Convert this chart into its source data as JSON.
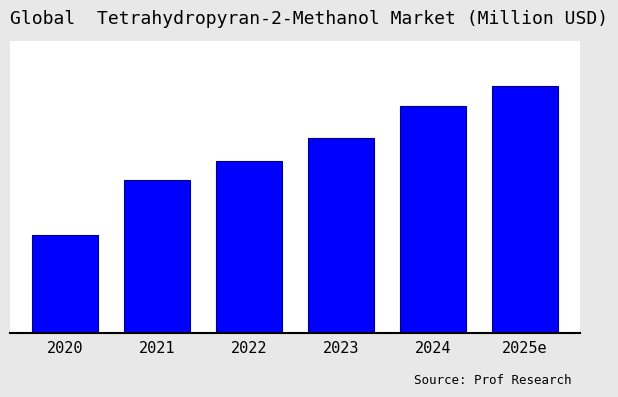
{
  "title": "Global  Tetrahydropyran-2-Methanol Market (Million USD)",
  "categories": [
    "2020",
    "2021",
    "2022",
    "2023",
    "2024",
    "2025e"
  ],
  "values": [
    30,
    47,
    53,
    60,
    70,
    76
  ],
  "bar_color": "#0000FF",
  "bar_edgecolor": "#000080",
  "background_color": "#e8e8e8",
  "plot_bg_color": "#ffffff",
  "source_text": "Source: Prof Research",
  "title_fontsize": 13,
  "tick_fontsize": 11,
  "source_fontsize": 9,
  "ylim": [
    0,
    90
  ],
  "bar_width": 0.72
}
